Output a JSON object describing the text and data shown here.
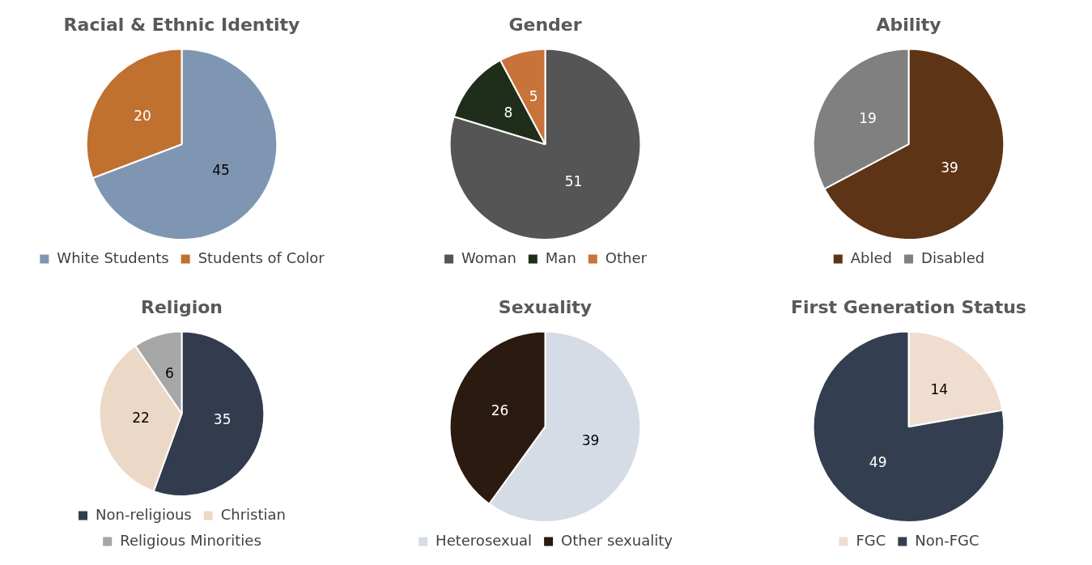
{
  "chart_data": [
    {
      "type": "pie",
      "title": "Racial & Ethnic Identity",
      "categories": [
        "White Students",
        "Students of Color"
      ],
      "values": [
        45,
        20
      ],
      "colors": [
        "#7f96b2",
        "#c0702f"
      ],
      "data_labels": true,
      "legend": "bottom"
    },
    {
      "type": "pie",
      "title": "Gender",
      "categories": [
        "Woman",
        "Man",
        "Other"
      ],
      "values": [
        51,
        8,
        5
      ],
      "colors": [
        "#555555",
        "#1f2d1a",
        "#c8733a"
      ],
      "data_labels": true,
      "legend": "bottom"
    },
    {
      "type": "pie",
      "title": "Ability",
      "categories": [
        "Abled",
        "Disabled"
      ],
      "values": [
        39,
        19
      ],
      "colors": [
        "#5e3416",
        "#808080"
      ],
      "data_labels": true,
      "legend": "bottom"
    },
    {
      "type": "pie",
      "title": "Religion",
      "categories": [
        "Non-religious",
        "Christian",
        "Religious Minorities"
      ],
      "values": [
        35,
        22,
        6
      ],
      "colors": [
        "#323c4e",
        "#ecd8c6",
        "#a6a6a6"
      ],
      "data_labels": true,
      "legend": "bottom"
    },
    {
      "type": "pie",
      "title": "Sexuality",
      "categories": [
        "Heterosexual",
        "Other sexuality"
      ],
      "values": [
        39,
        26
      ],
      "colors": [
        "#d6dce5",
        "#2a1a10"
      ],
      "data_labels": true,
      "legend": "bottom"
    },
    {
      "type": "pie",
      "title": "First Generation Status",
      "categories": [
        "FGC",
        "Non-FGC"
      ],
      "values": [
        14,
        49
      ],
      "colors": [
        "#f0ddd0",
        "#333f50"
      ],
      "data_labels": true,
      "legend": "bottom"
    }
  ]
}
